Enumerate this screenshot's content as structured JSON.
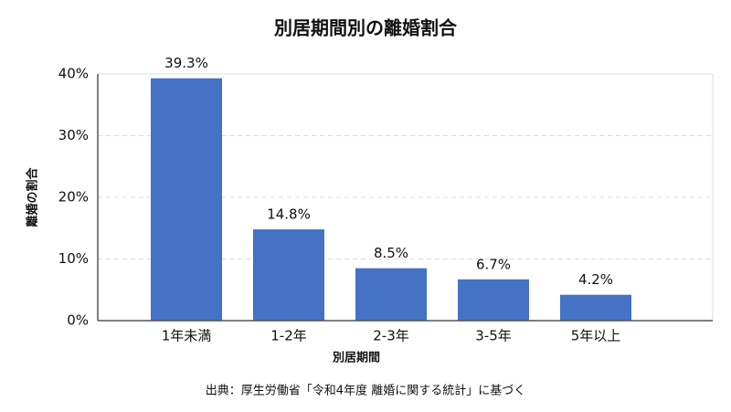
{
  "chart_data": {
    "type": "bar",
    "title": "別居期間別の離婚割合",
    "x_label": "別居期間",
    "y_label": "離婚の割合",
    "source": "出典：厚生労働省「令和4年度 離婚に関する統計」に基づく",
    "categories": [
      "1年未満",
      "1-2年",
      "2-3年",
      "3-5年",
      "5年以上"
    ],
    "values": [
      39.3,
      14.8,
      8.5,
      6.7,
      4.2
    ],
    "value_labels": [
      "39.3%",
      "14.8%",
      "8.5%",
      "6.7%",
      "4.2%"
    ],
    "color": "#4472c4",
    "ylim": [
      0,
      40
    ],
    "yticks": [
      {
        "value": 0,
        "label": "0%"
      },
      {
        "value": 10,
        "label": "10%"
      },
      {
        "value": 20,
        "label": "20%"
      },
      {
        "value": 30,
        "label": "30%"
      },
      {
        "value": 40,
        "label": "40%"
      }
    ],
    "grid": true
  }
}
